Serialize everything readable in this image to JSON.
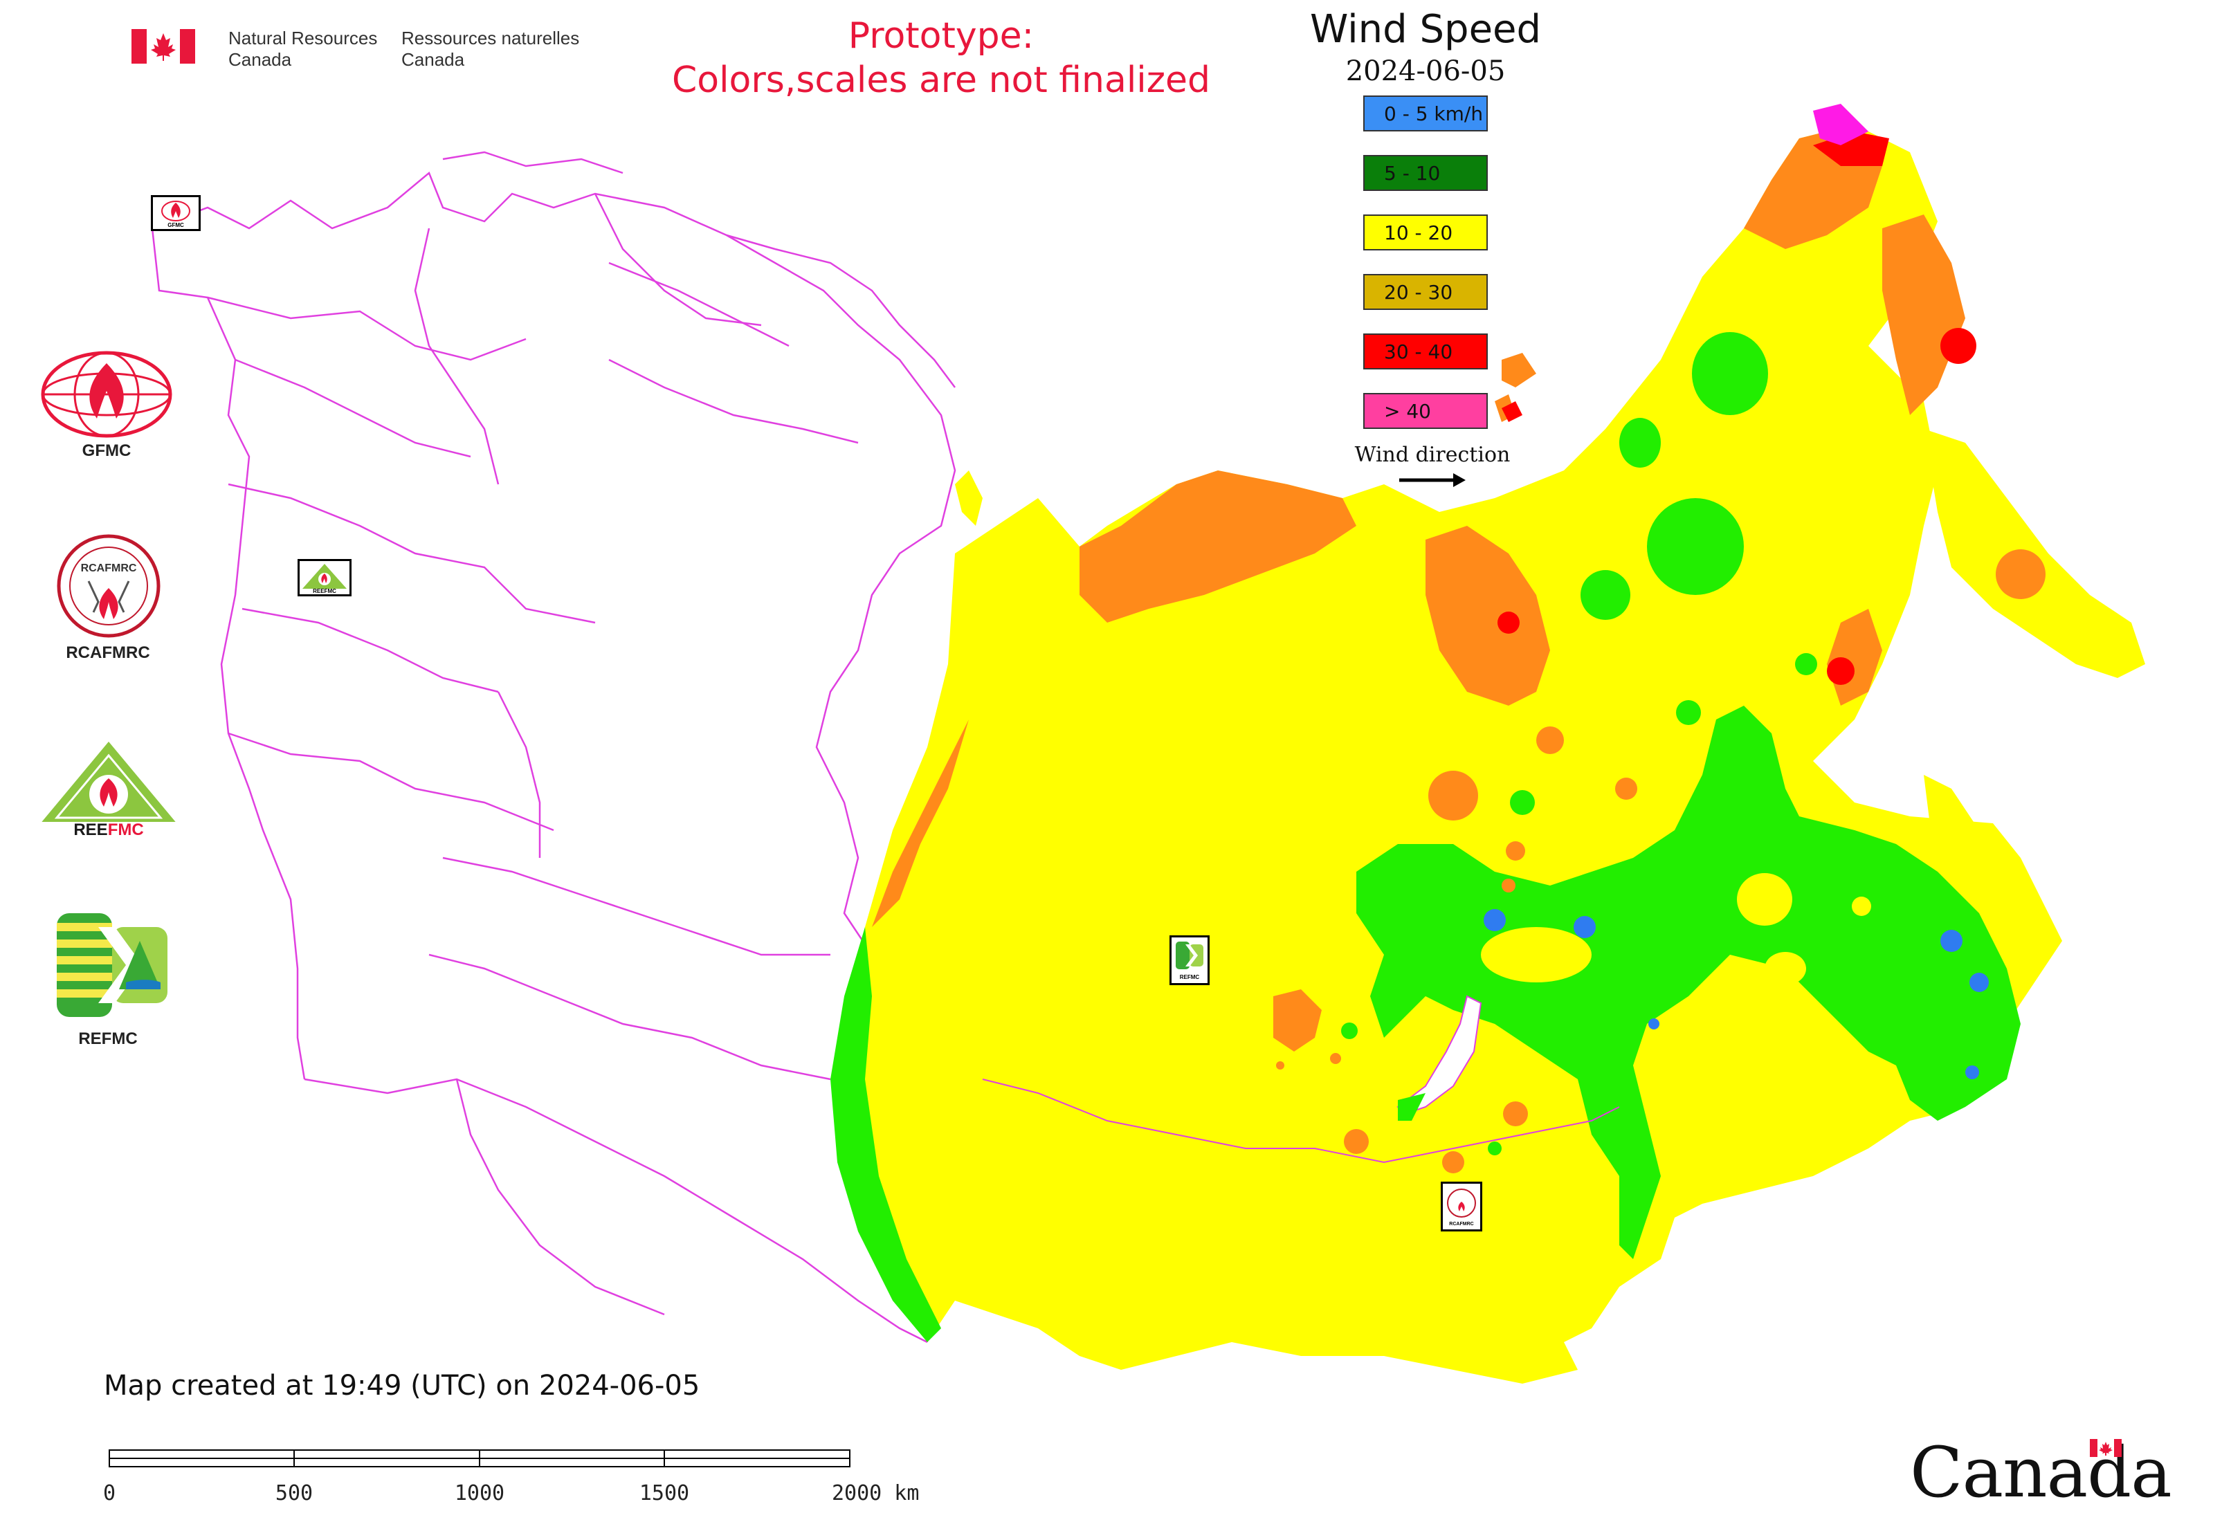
{
  "header": {
    "agency_en_line1": "Natural Resources",
    "agency_en_line2": "Canada",
    "agency_fr_line1": "Ressources naturelles",
    "agency_fr_line2": "Canada",
    "prototype_line1": "Prototype:",
    "prototype_line2": "Colors,scales are not finalized"
  },
  "legend": {
    "title": "Wind Speed",
    "date": "2024-06-05",
    "items": [
      {
        "label": "0 - 5 km/h",
        "color": "#3a8ff5"
      },
      {
        "label": "5 - 10",
        "color": "#0a7f0a"
      },
      {
        "label": "10 - 20",
        "color": "#ffff00"
      },
      {
        "label": "20 - 30",
        "color": "#d9b400"
      },
      {
        "label": "30 - 40",
        "color": "#ff0000"
      },
      {
        "label": "> 40",
        "color": "#ff3fa0"
      }
    ],
    "wind_direction_label": "Wind direction"
  },
  "logos": [
    {
      "name": "GFMC",
      "label": "GFMC"
    },
    {
      "name": "RCAFMRC",
      "label": "RCAFMRC"
    },
    {
      "name": "REEFMC",
      "label": ""
    },
    {
      "name": "REFMC",
      "label": "REFMC"
    }
  ],
  "map_markers": [
    {
      "name": "GFMC",
      "label": "GFMC"
    },
    {
      "name": "REEFMC",
      "label": "REEFMC"
    },
    {
      "name": "REFMC",
      "label": "REFMC"
    },
    {
      "name": "RCAFMRC",
      "label": "RCAFMRC"
    }
  ],
  "footer": {
    "created": "Map created at 19:49 (UTC) on 2024-06-05",
    "scale_ticks": [
      "0",
      "500",
      "1000",
      "1500",
      "2000 km"
    ],
    "wordmark": "Canada"
  },
  "colors": {
    "yellow": "#ffff00",
    "orange": "#ff8a1a",
    "green": "#22ee00",
    "red": "#ff0000",
    "magenta": "#ff1ae6",
    "blue": "#2f7cf0",
    "border": "#e040e0",
    "prototype": "#e8173b"
  }
}
